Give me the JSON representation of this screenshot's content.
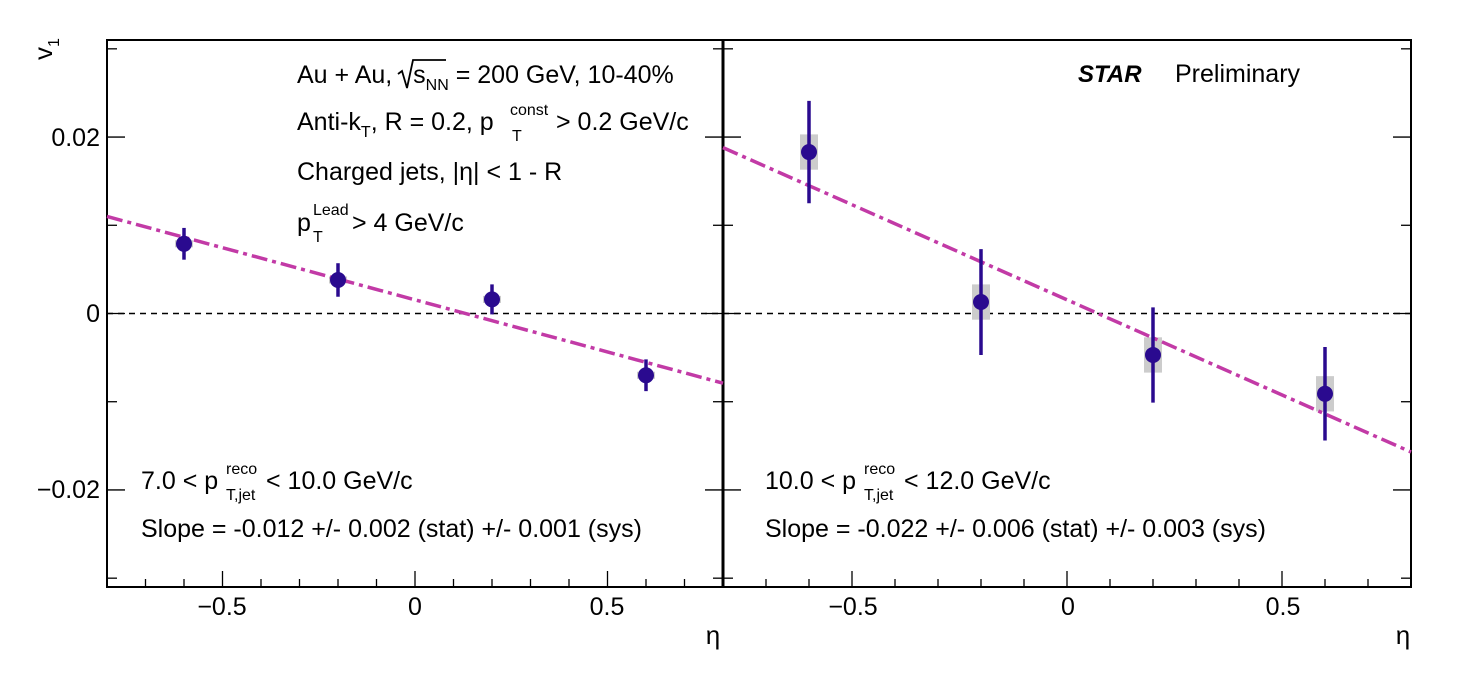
{
  "chart_data": {
    "type": "scatter",
    "x_axis_label": "η",
    "y_axis_label": "v",
    "y_axis_label_sub": "1",
    "xlim": [
      -0.8,
      0.8
    ],
    "ylim": [
      -0.031,
      0.031
    ],
    "x_tick_labels": [
      "−0.5",
      "0",
      "0.5"
    ],
    "x_tick_values": [
      -0.5,
      0,
      0.5
    ],
    "y_tick_labels": [
      "0.02",
      "0",
      "−0.02"
    ],
    "y_tick_values": [
      0.02,
      0,
      -0.02
    ],
    "reference_line_y": 0,
    "header": {
      "line1": "Au + Au, ",
      "sqrt_s": "s",
      "sqrt_sub": "NN",
      "line1_rest": " = 200 GeV, 10-40%",
      "line2_a": "Anti-k",
      "line2_a_sub": "T",
      "line2_b": ", R = 0.2, p",
      "line2_b_sup": "const",
      "line2_b_sub": "T",
      "line2_c": " > 0.2 GeV/c",
      "line3": "Charged jets, |η| < 1 - R",
      "line4_a": "p",
      "line4_sup": "Lead",
      "line4_sub": "T",
      "line4_b": " > 4 GeV/c"
    },
    "experiment": "STAR",
    "experiment_tag": "Preliminary",
    "panels": [
      {
        "range_pre": "7.0 < p",
        "range_sup": "reco",
        "range_sub": "T,jet",
        "range_post": " < 10.0 GeV/c",
        "slope_text": "Slope = -0.012 +/- 0.002 (stat) +/- 0.001 (sys)",
        "points": [
          {
            "x": -0.6,
            "y": 0.0079,
            "stat": 0.0018,
            "sys": 0.0004
          },
          {
            "x": -0.2,
            "y": 0.0038,
            "stat": 0.0019,
            "sys": 0.0004
          },
          {
            "x": 0.2,
            "y": 0.0016,
            "stat": 0.0017,
            "sys": 0.0004
          },
          {
            "x": 0.6,
            "y": -0.007,
            "stat": 0.0018,
            "sys": 0.0004
          }
        ],
        "fit": {
          "x": [
            -0.8,
            0.8
          ],
          "y": [
            0.011,
            -0.0079
          ]
        }
      },
      {
        "range_pre": "10.0 < p",
        "range_sup": "reco",
        "range_sub": "T,jet",
        "range_post": " < 12.0 GeV/c",
        "slope_text": "Slope = -0.022 +/- 0.006 (stat) +/- 0.003 (sys)",
        "points": [
          {
            "x": -0.6,
            "y": 0.0183,
            "stat": 0.0058,
            "sys": 0.002
          },
          {
            "x": -0.2,
            "y": 0.0013,
            "stat": 0.006,
            "sys": 0.002
          },
          {
            "x": 0.2,
            "y": -0.0047,
            "stat": 0.0054,
            "sys": 0.002
          },
          {
            "x": 0.6,
            "y": -0.0091,
            "stat": 0.0053,
            "sys": 0.002
          }
        ],
        "fit": {
          "x": [
            -0.8,
            0.8
          ],
          "y": [
            0.0188,
            -0.0157
          ]
        }
      }
    ],
    "colors": {
      "marker": "#2a0a8f",
      "fit": "#c23aa6",
      "sys_box": "#cccccc",
      "axis": "#000000"
    }
  }
}
